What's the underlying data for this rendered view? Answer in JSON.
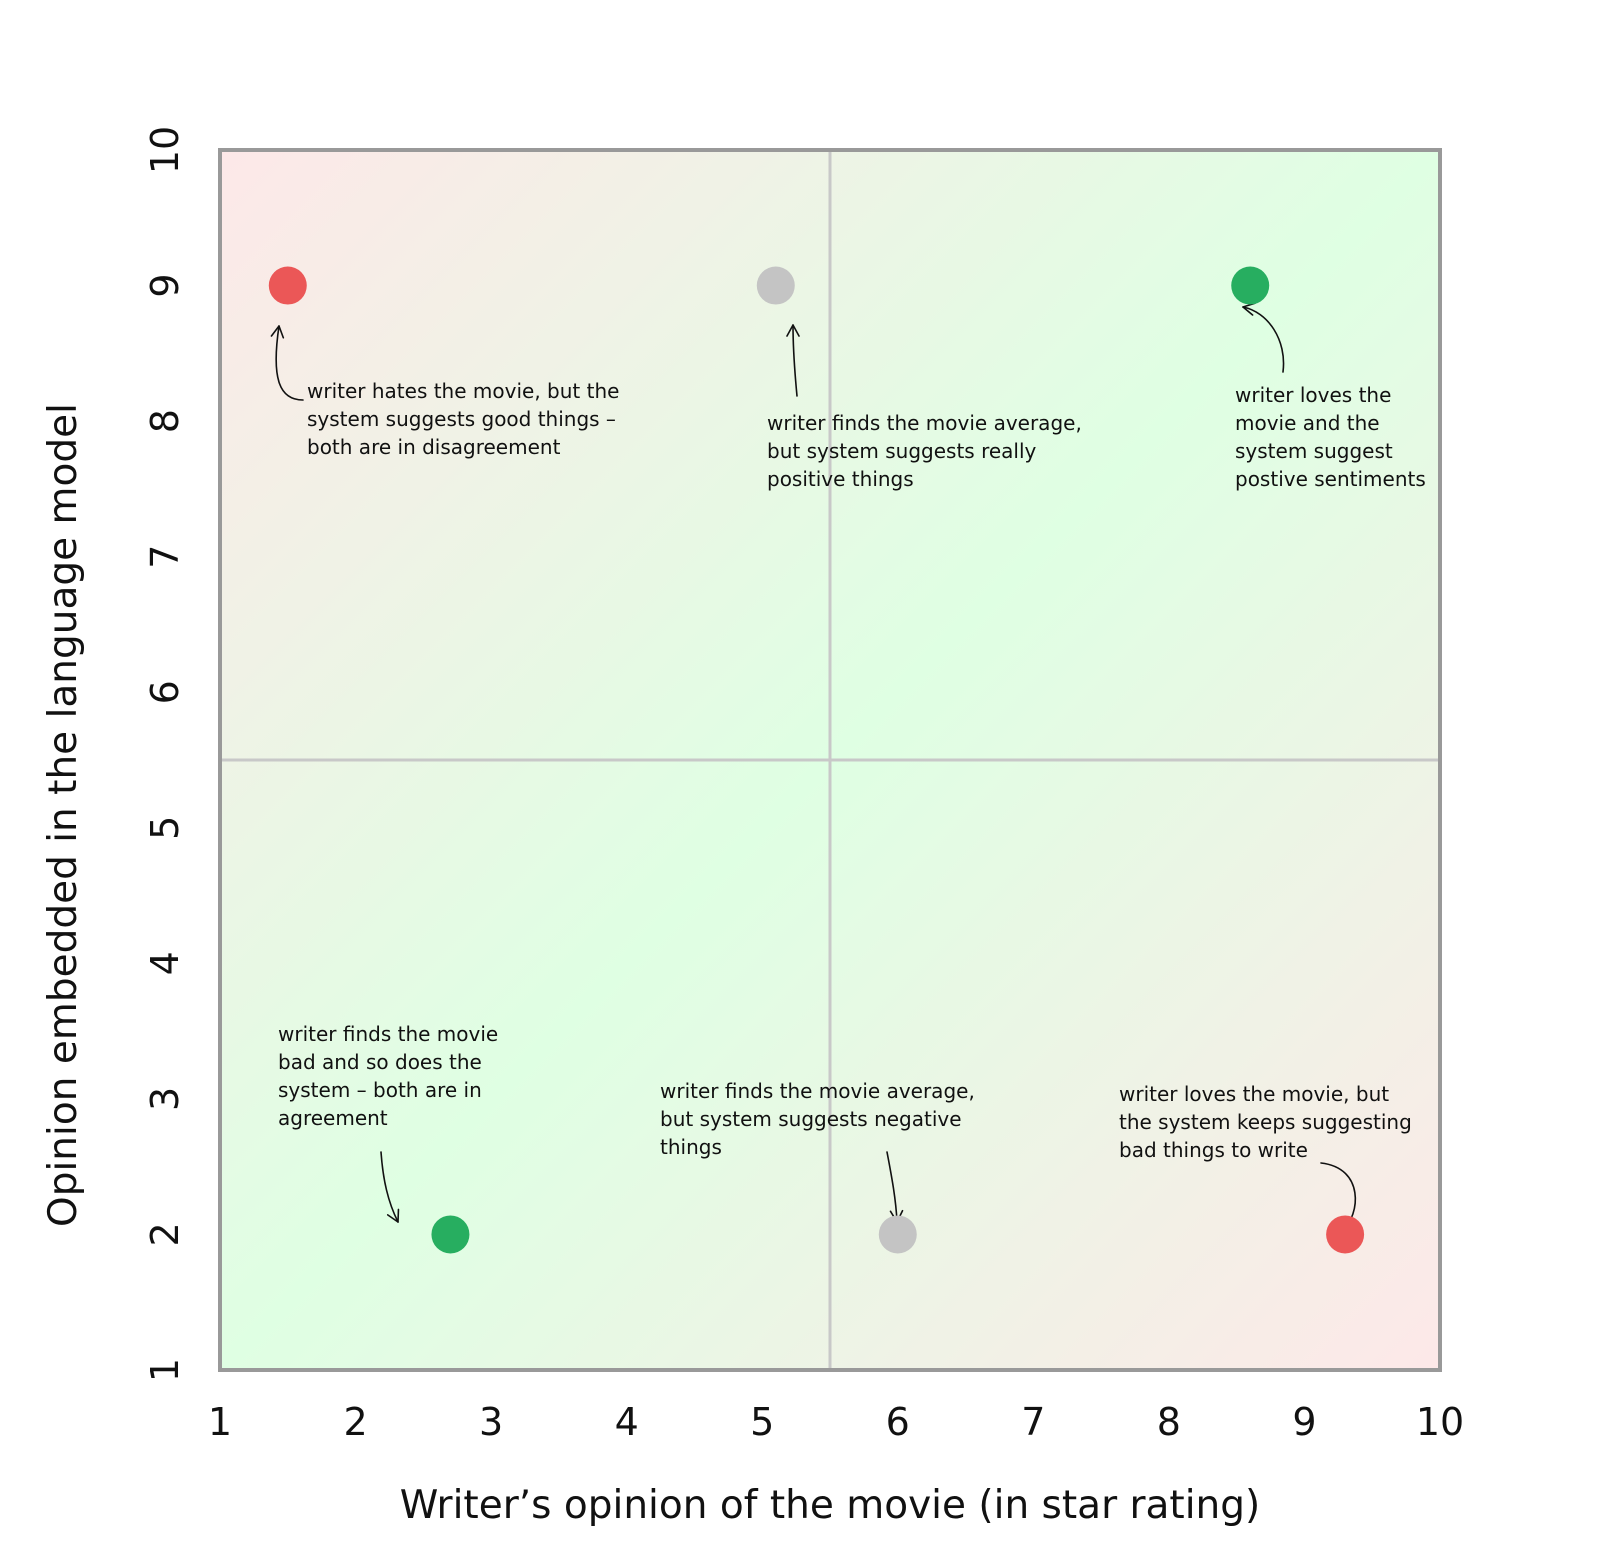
{
  "chart_data": {
    "type": "scatter",
    "xlabel": "Writer’s opinion of the movie (in star rating)",
    "ylabel": "Opinion embedded in the language model",
    "xlim": [
      1,
      10
    ],
    "ylim": [
      1,
      10
    ],
    "x_ticks": [
      1,
      2,
      3,
      4,
      5,
      6,
      7,
      8,
      9,
      10
    ],
    "y_ticks": [
      1,
      2,
      3,
      4,
      5,
      6,
      7,
      8,
      9,
      10
    ],
    "grid": false,
    "quadrant_divider": {
      "x": 5.5,
      "y": 5.5
    },
    "background": "diagonal gradient: red tint at disagreement corners, green tint along agreement diagonal",
    "colors": {
      "disagreement": "#eb5757",
      "agreement": "#27ae60",
      "neutral": "#c4c4c4",
      "frame": "#999999",
      "divider": "#c8c8c8"
    },
    "points": [
      {
        "x": 1.5,
        "y": 9,
        "color": "#eb5757",
        "note": [
          "writer hates the movie, but the",
          "system suggests good things –",
          "both are in disagreement"
        ]
      },
      {
        "x": 5.1,
        "y": 9,
        "color": "#c4c4c4",
        "note": [
          "writer finds the movie average,",
          "but system suggests really",
          "positive things"
        ]
      },
      {
        "x": 8.6,
        "y": 9,
        "color": "#27ae60",
        "note": [
          "writer loves the",
          "movie and the",
          "system suggest",
          "postive sentiments"
        ]
      },
      {
        "x": 2.7,
        "y": 2,
        "color": "#27ae60",
        "note": [
          "writer finds the movie",
          "bad and so does the",
          "system – both are in",
          "agreement"
        ]
      },
      {
        "x": 6.0,
        "y": 2,
        "color": "#c4c4c4",
        "note": [
          "writer finds the movie average,",
          "but system suggests negative",
          "things"
        ]
      },
      {
        "x": 9.3,
        "y": 2,
        "color": "#eb5757",
        "note": [
          "writer loves the movie, but",
          "the system keeps suggesting",
          "bad things to write"
        ]
      }
    ]
  }
}
